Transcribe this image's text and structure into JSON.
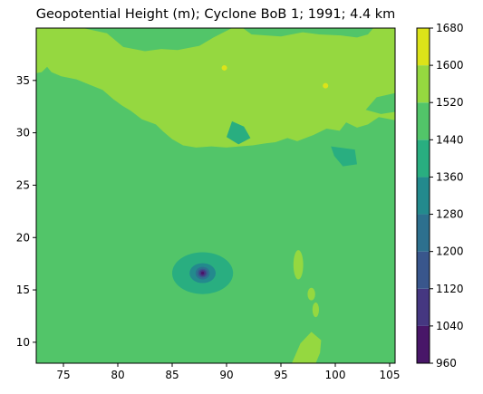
{
  "chart_data": {
    "type": "contourf",
    "title": "Geopotential Height (m); Cyclone BoB 1; 1991; 4.4 km",
    "xlabel": "",
    "ylabel": "",
    "xlim": [
      72.5,
      105.5
    ],
    "ylim": [
      8,
      40
    ],
    "x_ticks": [
      75,
      80,
      85,
      90,
      95,
      100,
      105
    ],
    "y_ticks": [
      10,
      15,
      20,
      25,
      30,
      35
    ],
    "grid": false,
    "colorbar": {
      "levels": [
        960,
        1040,
        1120,
        1200,
        1280,
        1360,
        1440,
        1520,
        1600,
        1680
      ],
      "colors": [
        "#440154",
        "#472d7b",
        "#3b528b",
        "#2c728e",
        "#21918c",
        "#28ae80",
        "#5ec962",
        "#addc30",
        "#fde725"
      ],
      "fill_colors": [
        "#481668",
        "#453781",
        "#39568c",
        "#2d708e",
        "#238a8d",
        "#29ae80",
        "#52c569",
        "#95d840",
        "#dce319"
      ]
    },
    "features": {
      "background_level": [
        1440,
        1520
      ],
      "highland_level": [
        1520,
        1600
      ],
      "peak_level": [
        1600,
        1680
      ],
      "cyclone_center": {
        "lon": 87.8,
        "lat": 16.6,
        "min_height": 960
      }
    }
  }
}
